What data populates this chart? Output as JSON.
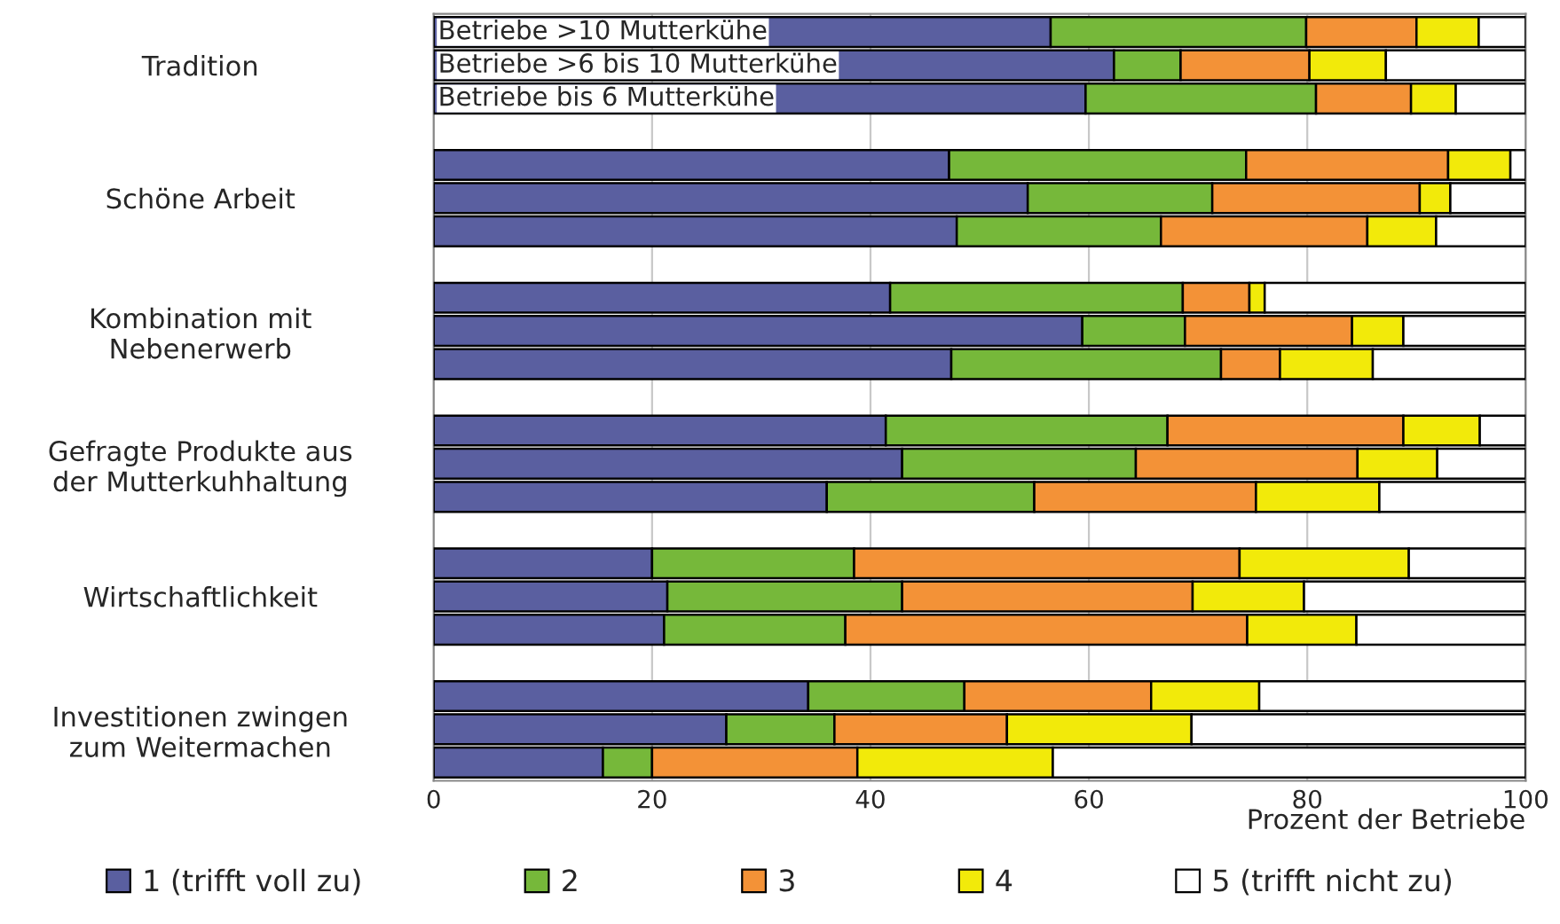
{
  "chart_data": {
    "type": "bar",
    "orientation": "horizontal",
    "stacked": true,
    "xlabel": "Prozent der Betriebe",
    "xlim": [
      0,
      100
    ],
    "xticks": [
      0,
      20,
      40,
      60,
      80,
      100
    ],
    "grid": "x",
    "legend": "bottom",
    "categories": [
      null,
      "Tradition",
      null,
      null,
      null,
      "Schöne Arbeit",
      null,
      null,
      null,
      "Kombination mit\nNebenerwerb",
      null,
      null,
      null,
      "Gefragte Produkte aus\nder Mutterkuhhaltung",
      null,
      null,
      null,
      "Wirtschaftlichkeit",
      null,
      null,
      null,
      "Investitionen zwingen\nzum Weitermachen",
      null
    ],
    "annotations": [
      "Betriebe >10 Mutterkühe",
      "Betriebe >6 bis 10 Mutterkühe",
      "Betriebe bis 6 Mutterkühe"
    ],
    "series": [
      {
        "name": "1 (trifft voll zu)",
        "color": "#5a5fa0",
        "values": [
          56.5,
          62.3,
          59.7,
          null,
          47.2,
          54.4,
          47.9,
          null,
          41.8,
          59.4,
          47.4,
          null,
          41.4,
          42.9,
          36.0,
          null,
          20.0,
          21.4,
          21.1,
          null,
          34.3,
          26.8,
          15.5
        ]
      },
      {
        "name": "2",
        "color": "#76b83a",
        "values": [
          23.4,
          6.1,
          21.1,
          null,
          27.2,
          16.9,
          18.7,
          null,
          26.8,
          9.4,
          24.7,
          null,
          25.8,
          21.4,
          19.0,
          null,
          18.5,
          21.5,
          16.6,
          null,
          14.3,
          9.9,
          4.5
        ]
      },
      {
        "name": "3",
        "color": "#f39237",
        "values": [
          10.1,
          11.8,
          8.7,
          null,
          18.5,
          19.0,
          18.9,
          null,
          6.1,
          15.3,
          5.4,
          null,
          21.6,
          20.3,
          20.3,
          null,
          35.3,
          26.6,
          36.8,
          null,
          17.1,
          15.8,
          18.8
        ]
      },
      {
        "name": "4",
        "color": "#f2ea0a",
        "values": [
          5.7,
          7.0,
          4.1,
          null,
          5.7,
          2.8,
          6.3,
          null,
          1.4,
          4.7,
          8.5,
          null,
          7.0,
          7.3,
          11.3,
          null,
          15.5,
          10.2,
          10.0,
          null,
          9.9,
          16.9,
          17.9
        ]
      },
      {
        "name": "5 (trifft nicht zu)",
        "color": "#ffffff",
        "values": [
          4.3,
          12.8,
          6.4,
          null,
          1.4,
          6.9,
          8.2,
          null,
          23.9,
          11.2,
          14.0,
          null,
          4.2,
          8.1,
          13.4,
          null,
          10.7,
          20.3,
          15.5,
          null,
          24.4,
          30.6,
          43.3
        ]
      }
    ]
  }
}
